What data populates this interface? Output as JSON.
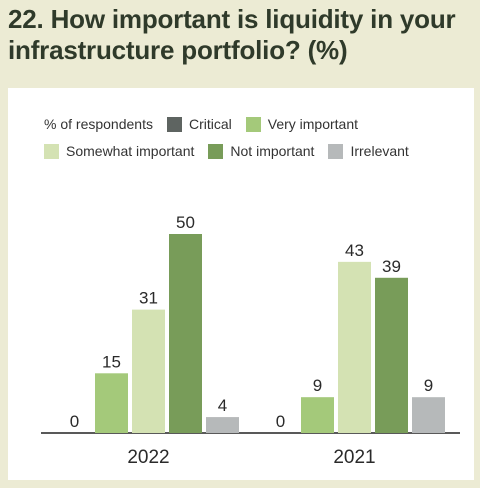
{
  "title": "22. How important is liquidity in your infrastructure portfolio? (%)",
  "legend_label": "% of respondents",
  "colors": {
    "Critical": "#5e6461",
    "Very important": "#a4c97a",
    "Somewhat important": "#d4e2b3",
    "Not important": "#789c59",
    "Irrelevant": "#b6b9ba"
  },
  "chart_data": {
    "type": "bar",
    "categories": [
      "2022",
      "2021"
    ],
    "series": [
      {
        "name": "Critical",
        "values": [
          0,
          0
        ]
      },
      {
        "name": "Very important",
        "values": [
          15,
          9
        ]
      },
      {
        "name": "Somewhat important",
        "values": [
          31,
          43
        ]
      },
      {
        "name": "Not important",
        "values": [
          50,
          39
        ]
      },
      {
        "name": "Irrelevant",
        "values": [
          4,
          9
        ]
      }
    ],
    "ylim": [
      0,
      50
    ],
    "legend": "top",
    "grid": false
  }
}
